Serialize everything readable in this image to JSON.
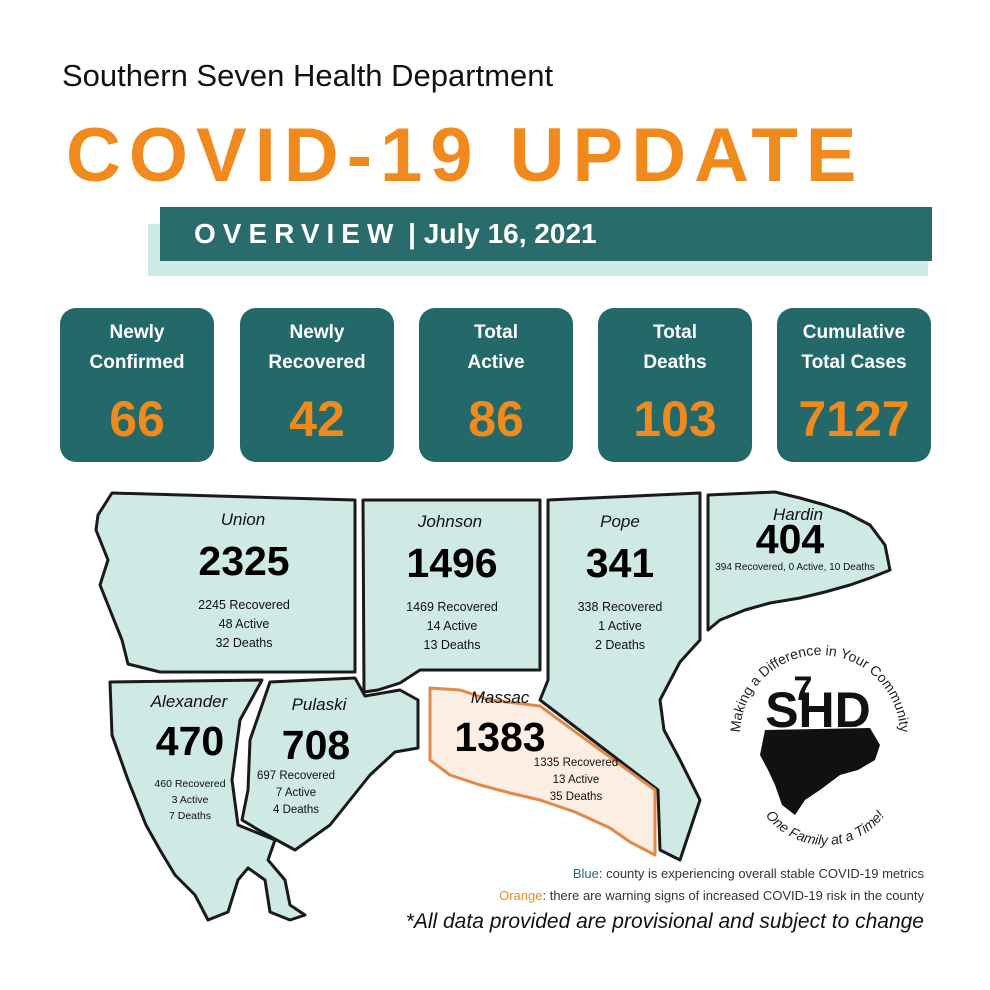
{
  "header": {
    "org": "Southern Seven Health Department",
    "headline": "COVID-19 UPDATE",
    "overview_word": "OVERVIEW",
    "overview_date": " | July 16, 2021"
  },
  "stats": [
    {
      "label_l1": "Newly",
      "label_l2": "Confirmed",
      "value": "66"
    },
    {
      "label_l1": "Newly",
      "label_l2": "Recovered",
      "value": "42"
    },
    {
      "label_l1": "Total",
      "label_l2": "Active",
      "value": "86"
    },
    {
      "label_l1": "Total",
      "label_l2": "Deaths",
      "value": "103"
    },
    {
      "label_l1": "Cumulative",
      "label_l2": "Total Cases",
      "value": "7127"
    }
  ],
  "counties": {
    "union": {
      "name": "Union",
      "total": "2325",
      "recovered": "2245 Recovered",
      "active": "48 Active",
      "deaths": "32 Deaths",
      "status": "blue"
    },
    "johnson": {
      "name": "Johnson",
      "total": "1496",
      "recovered": "1469 Recovered",
      "active": "14 Active",
      "deaths": "13 Deaths",
      "status": "blue"
    },
    "pope": {
      "name": "Pope",
      "total": "341",
      "recovered": "338 Recovered",
      "active": "1 Active",
      "deaths": "2 Deaths",
      "status": "blue"
    },
    "hardin": {
      "name": "Hardin",
      "total": "404",
      "summary": "394 Recovered, 0 Active, 10 Deaths",
      "status": "blue"
    },
    "alexander": {
      "name": "Alexander",
      "total": "470",
      "recovered": "460 Recovered",
      "active": "3 Active",
      "deaths": "7 Deaths",
      "status": "blue"
    },
    "pulaski": {
      "name": "Pulaski",
      "total": "708",
      "recovered": "697 Recovered",
      "active": "7 Active",
      "deaths": "4 Deaths",
      "status": "blue"
    },
    "massac": {
      "name": "Massac",
      "total": "1383",
      "recovered": "1335 Recovered",
      "active": "13 Active",
      "deaths": "35 Deaths",
      "status": "orange"
    }
  },
  "logo": {
    "top_text": "Making a Difference in Your Community",
    "bottom_text": "One Family at a Time!",
    "mark_text": "SHD",
    "mark_numeral": "7"
  },
  "legend": {
    "blue_key": "Blue",
    "blue_text": ": county is experiencing overall stable COVID-19 metrics",
    "orange_key": "Orange",
    "orange_text": ": there are warning signs of increased COVID-19 risk in the county"
  },
  "disclaimer": "*All data provided are provisional and subject to change",
  "colors": {
    "teal": "#236969",
    "orange": "#f08a1c",
    "stable_fill": "#cfe9e4",
    "warning_fill": "#fdeee4"
  }
}
